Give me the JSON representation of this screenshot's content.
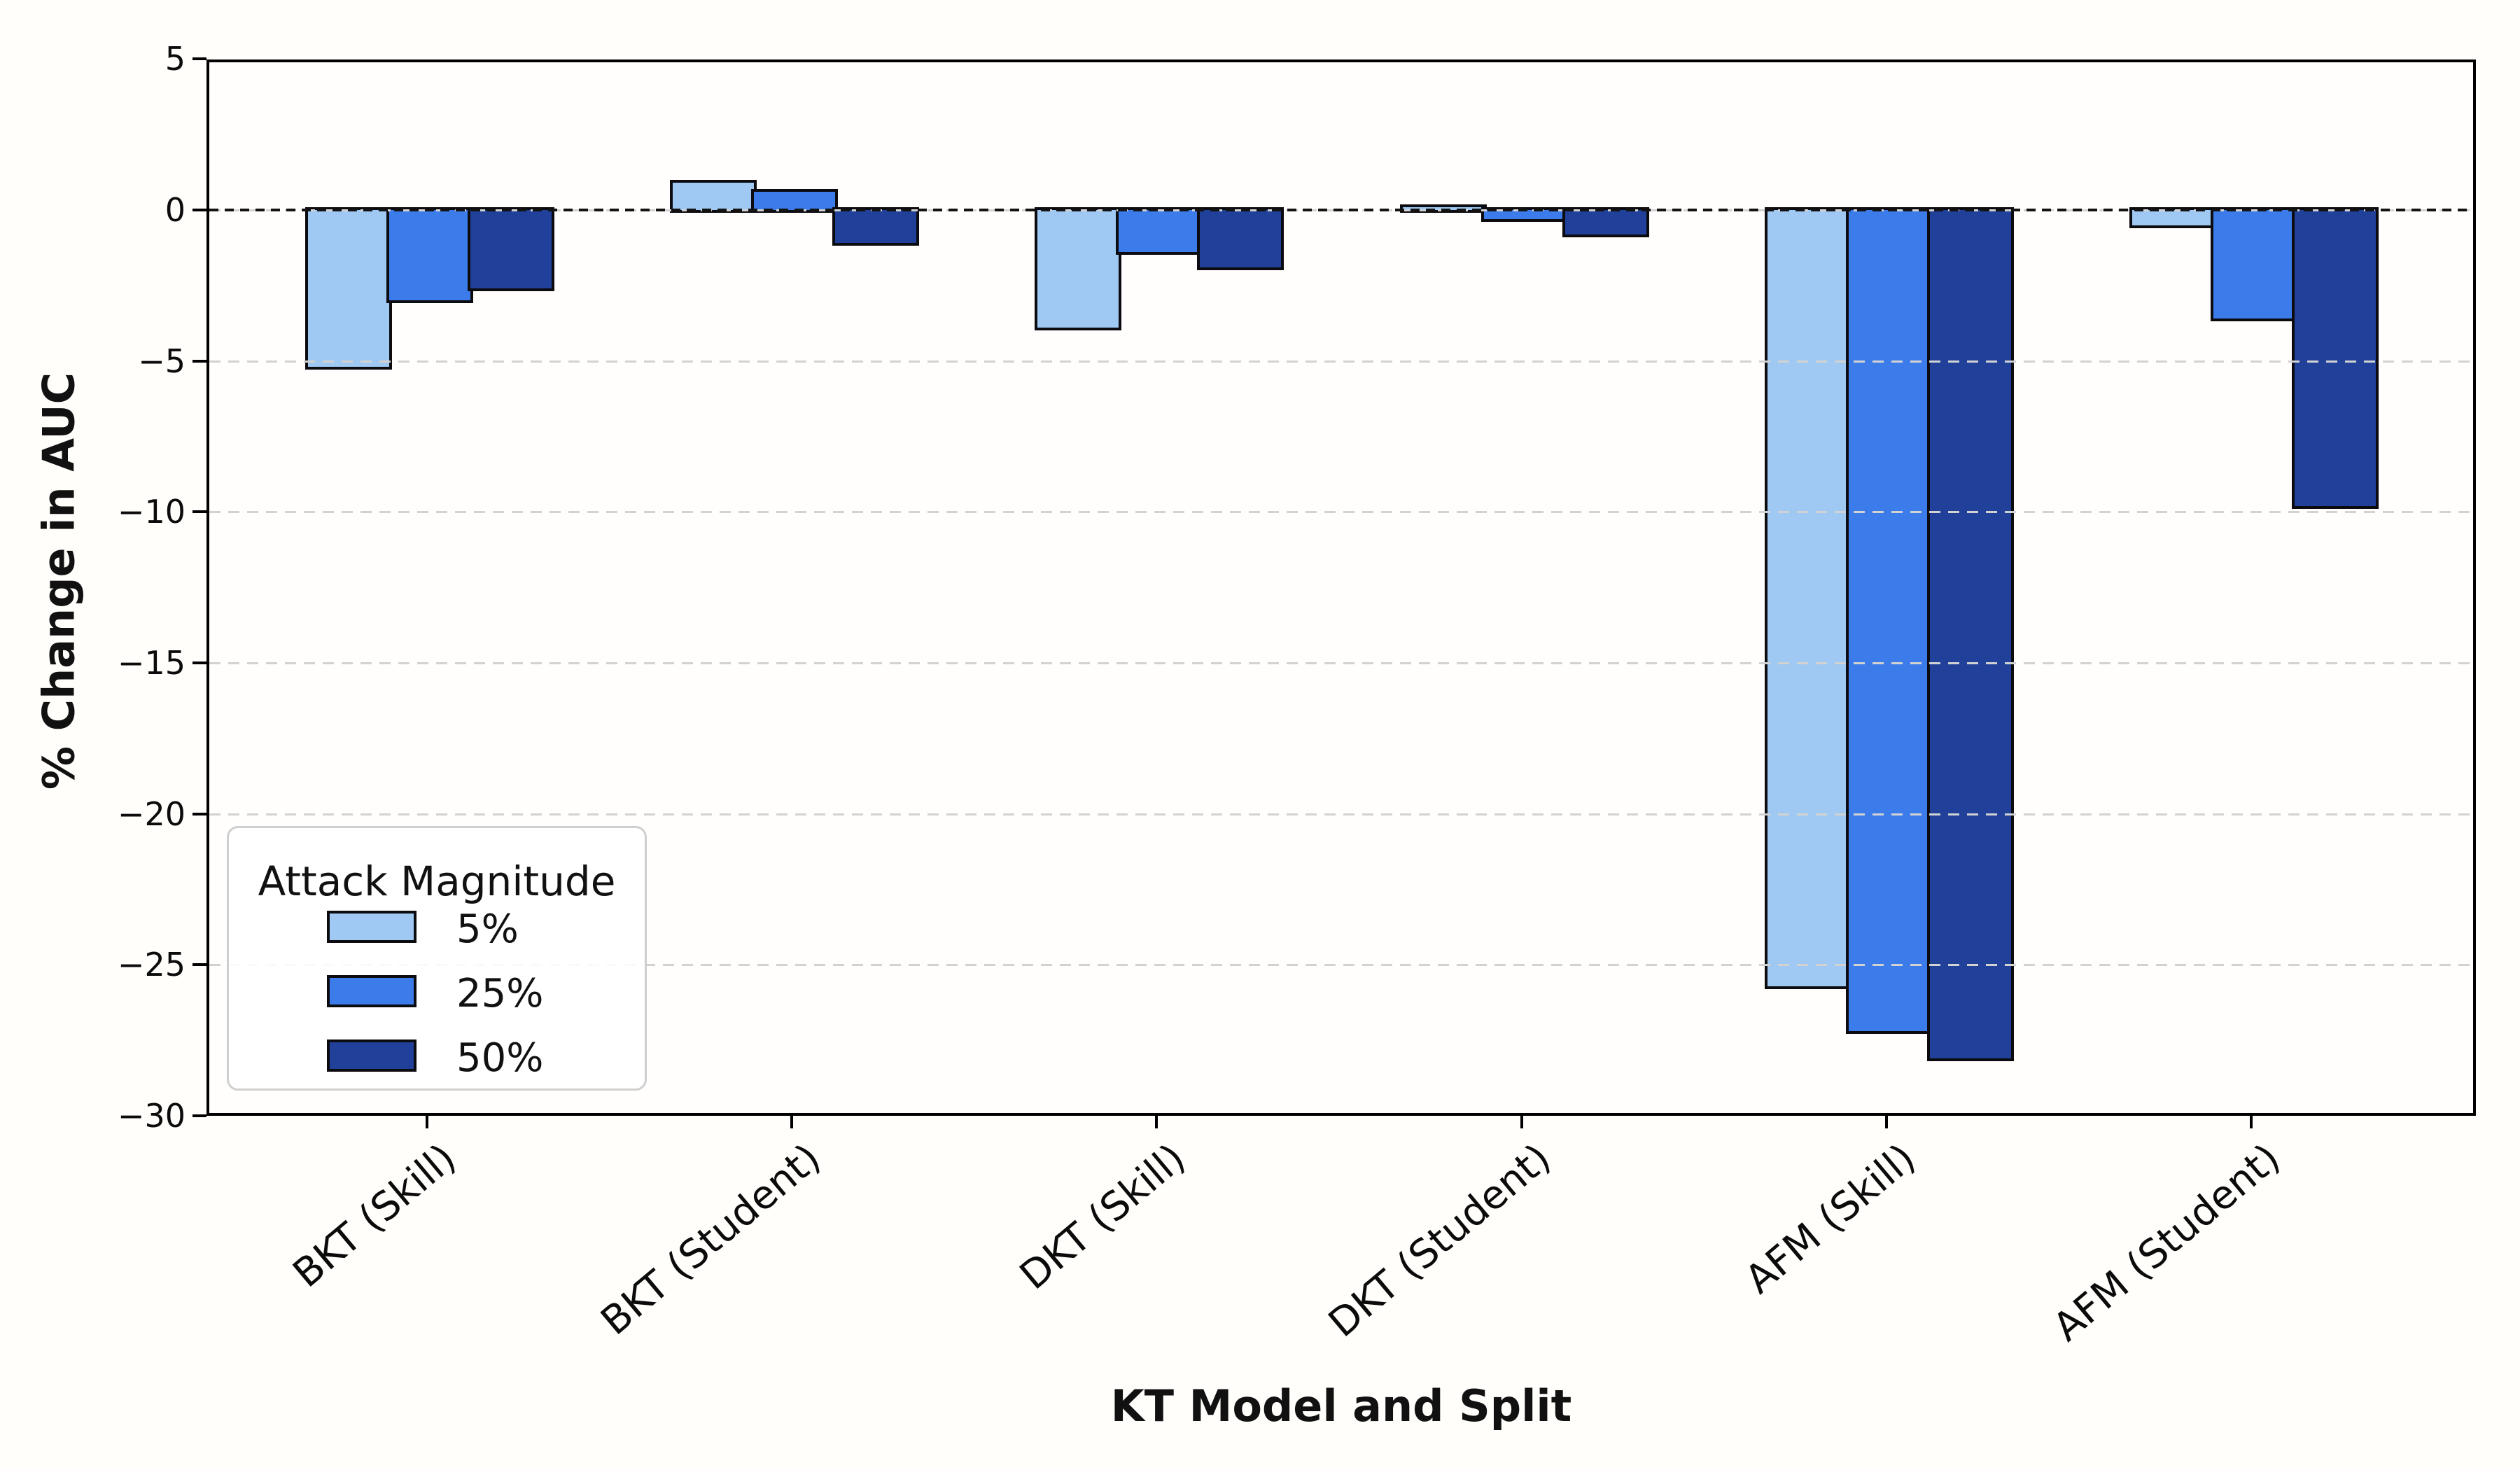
{
  "chart_data": {
    "type": "bar",
    "title": "",
    "xlabel": "KT Model and Split",
    "ylabel": "% Change in AUC",
    "legend_title": "Attack Magnitude",
    "legend_position": "lower left",
    "categories": [
      "BKT (Skill)",
      "BKT (Student)",
      "DKT (Skill)",
      "DKT (Student)",
      "AFM (Skill)",
      "AFM (Student)"
    ],
    "series": [
      {
        "name": "5%",
        "color": "#9FC8F3",
        "values": [
          -5.2,
          0.9,
          -3.9,
          0.1,
          -25.7,
          -0.5
        ]
      },
      {
        "name": "25%",
        "color": "#3C7CEA",
        "values": [
          -3.0,
          0.6,
          -1.4,
          -0.3,
          -27.2,
          -3.6
        ]
      },
      {
        "name": "50%",
        "color": "#20409A",
        "values": [
          -2.6,
          -1.1,
          -1.9,
          -0.8,
          -28.1,
          -9.8
        ]
      }
    ],
    "ylim": [
      -30,
      5
    ],
    "yticks": [
      {
        "label": "5",
        "value": 5
      },
      {
        "label": "0",
        "value": 0
      },
      {
        "label": "−5",
        "value": -5
      },
      {
        "label": "−10",
        "value": -10
      },
      {
        "label": "−15",
        "value": -15
      },
      {
        "label": "−20",
        "value": -20
      },
      {
        "label": "−25",
        "value": -25
      },
      {
        "label": "−30",
        "value": -30
      }
    ],
    "grid": "horizontal dashed lightgray, drawn over bars",
    "zero_line": "black dashed at y=0",
    "colors": {
      "bar_edge": "#0c0c10",
      "grid": "#d2d2d2",
      "spine": "#000000",
      "background": "#ffffff"
    }
  }
}
